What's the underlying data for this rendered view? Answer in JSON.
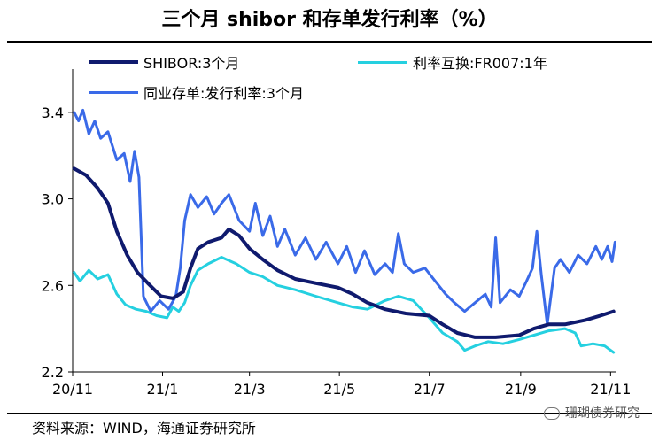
{
  "title": "三个月 shibor 和存单发行利率（%）",
  "source": "资料来源：WIND，海通证券研究所",
  "watermark": "珊瑚债券研究",
  "colors": {
    "shibor": "#0f1a6e",
    "irs": "#25d0e0",
    "ncd": "#3a6ae8",
    "axis": "#000000",
    "background": "#ffffff"
  },
  "chart_data": {
    "type": "line",
    "ylim": [
      2.2,
      3.6
    ],
    "y_ticks": [
      "2.2",
      "2.6",
      "3.0",
      "3.4"
    ],
    "x_tick_labels": [
      "20/11",
      "21/1",
      "21/3",
      "21/5",
      "21/7",
      "21/9",
      "21/11"
    ],
    "x_tick_dates": [
      "2020-11-01",
      "2021-01-01",
      "2021-03-01",
      "2021-05-01",
      "2021-07-01",
      "2021-09-01",
      "2021-11-01"
    ],
    "x_range": [
      "2020-11-01",
      "2021-11-05"
    ],
    "legend": "top",
    "series": [
      {
        "name": "SHIBOR:3个月",
        "key": "shibor",
        "points": [
          [
            "2020-11-02",
            3.14
          ],
          [
            "2020-11-10",
            3.11
          ],
          [
            "2020-11-18",
            3.05
          ],
          [
            "2020-11-25",
            2.98
          ],
          [
            "2020-12-01",
            2.85
          ],
          [
            "2020-12-08",
            2.74
          ],
          [
            "2020-12-15",
            2.66
          ],
          [
            "2020-12-22",
            2.61
          ],
          [
            "2020-12-31",
            2.55
          ],
          [
            "2021-01-08",
            2.54
          ],
          [
            "2021-01-15",
            2.57
          ],
          [
            "2021-01-20",
            2.68
          ],
          [
            "2021-01-25",
            2.77
          ],
          [
            "2021-02-01",
            2.8
          ],
          [
            "2021-02-10",
            2.82
          ],
          [
            "2021-02-15",
            2.86
          ],
          [
            "2021-02-22",
            2.83
          ],
          [
            "2021-03-01",
            2.77
          ],
          [
            "2021-03-10",
            2.72
          ],
          [
            "2021-03-20",
            2.67
          ],
          [
            "2021-04-01",
            2.63
          ],
          [
            "2021-04-15",
            2.61
          ],
          [
            "2021-04-30",
            2.59
          ],
          [
            "2021-05-10",
            2.56
          ],
          [
            "2021-05-20",
            2.52
          ],
          [
            "2021-06-01",
            2.49
          ],
          [
            "2021-06-15",
            2.47
          ],
          [
            "2021-07-01",
            2.46
          ],
          [
            "2021-07-10",
            2.42
          ],
          [
            "2021-07-20",
            2.38
          ],
          [
            "2021-08-01",
            2.36
          ],
          [
            "2021-08-15",
            2.36
          ],
          [
            "2021-08-31",
            2.37
          ],
          [
            "2021-09-10",
            2.4
          ],
          [
            "2021-09-20",
            2.42
          ],
          [
            "2021-10-01",
            2.42
          ],
          [
            "2021-10-15",
            2.44
          ],
          [
            "2021-10-25",
            2.46
          ],
          [
            "2021-11-03",
            2.48
          ]
        ]
      },
      {
        "name": "利率互换:FR007:1年",
        "key": "irs",
        "points": [
          [
            "2020-11-02",
            2.66
          ],
          [
            "2020-11-06",
            2.62
          ],
          [
            "2020-11-12",
            2.67
          ],
          [
            "2020-11-18",
            2.63
          ],
          [
            "2020-11-25",
            2.65
          ],
          [
            "2020-12-01",
            2.56
          ],
          [
            "2020-12-07",
            2.51
          ],
          [
            "2020-12-14",
            2.49
          ],
          [
            "2020-12-21",
            2.48
          ],
          [
            "2020-12-28",
            2.46
          ],
          [
            "2021-01-04",
            2.45
          ],
          [
            "2021-01-08",
            2.5
          ],
          [
            "2021-01-12",
            2.48
          ],
          [
            "2021-01-16",
            2.52
          ],
          [
            "2021-01-20",
            2.6
          ],
          [
            "2021-01-25",
            2.67
          ],
          [
            "2021-02-01",
            2.7
          ],
          [
            "2021-02-10",
            2.73
          ],
          [
            "2021-02-20",
            2.7
          ],
          [
            "2021-03-01",
            2.66
          ],
          [
            "2021-03-10",
            2.64
          ],
          [
            "2021-03-20",
            2.6
          ],
          [
            "2021-04-01",
            2.58
          ],
          [
            "2021-04-15",
            2.55
          ],
          [
            "2021-04-30",
            2.52
          ],
          [
            "2021-05-10",
            2.5
          ],
          [
            "2021-05-20",
            2.49
          ],
          [
            "2021-06-01",
            2.53
          ],
          [
            "2021-06-10",
            2.55
          ],
          [
            "2021-06-20",
            2.53
          ],
          [
            "2021-07-01",
            2.45
          ],
          [
            "2021-07-10",
            2.38
          ],
          [
            "2021-07-20",
            2.34
          ],
          [
            "2021-07-25",
            2.3
          ],
          [
            "2021-08-01",
            2.32
          ],
          [
            "2021-08-10",
            2.34
          ],
          [
            "2021-08-20",
            2.33
          ],
          [
            "2021-08-31",
            2.35
          ],
          [
            "2021-09-10",
            2.37
          ],
          [
            "2021-09-20",
            2.39
          ],
          [
            "2021-10-01",
            2.4
          ],
          [
            "2021-10-08",
            2.38
          ],
          [
            "2021-10-12",
            2.32
          ],
          [
            "2021-10-20",
            2.33
          ],
          [
            "2021-10-28",
            2.32
          ],
          [
            "2021-11-03",
            2.29
          ]
        ]
      },
      {
        "name": "同业存单:发行利率:3个月",
        "key": "ncd",
        "points": [
          [
            "2020-11-02",
            3.4
          ],
          [
            "2020-11-05",
            3.36
          ],
          [
            "2020-11-08",
            3.41
          ],
          [
            "2020-11-12",
            3.3
          ],
          [
            "2020-11-16",
            3.36
          ],
          [
            "2020-11-20",
            3.28
          ],
          [
            "2020-11-25",
            3.31
          ],
          [
            "2020-12-01",
            3.18
          ],
          [
            "2020-12-06",
            3.21
          ],
          [
            "2020-12-10",
            3.08
          ],
          [
            "2020-12-13",
            3.22
          ],
          [
            "2020-12-16",
            3.1
          ],
          [
            "2020-12-19",
            2.55
          ],
          [
            "2020-12-24",
            2.48
          ],
          [
            "2020-12-30",
            2.53
          ],
          [
            "2021-01-05",
            2.49
          ],
          [
            "2021-01-10",
            2.55
          ],
          [
            "2021-01-13",
            2.68
          ],
          [
            "2021-01-16",
            2.9
          ],
          [
            "2021-01-20",
            3.02
          ],
          [
            "2021-01-25",
            2.96
          ],
          [
            "2021-01-31",
            3.01
          ],
          [
            "2021-02-05",
            2.93
          ],
          [
            "2021-02-10",
            2.98
          ],
          [
            "2021-02-15",
            3.02
          ],
          [
            "2021-02-22",
            2.9
          ],
          [
            "2021-03-01",
            2.85
          ],
          [
            "2021-03-05",
            2.98
          ],
          [
            "2021-03-10",
            2.83
          ],
          [
            "2021-03-15",
            2.92
          ],
          [
            "2021-03-20",
            2.78
          ],
          [
            "2021-03-25",
            2.86
          ],
          [
            "2021-04-01",
            2.74
          ],
          [
            "2021-04-08",
            2.82
          ],
          [
            "2021-04-15",
            2.72
          ],
          [
            "2021-04-22",
            2.8
          ],
          [
            "2021-04-30",
            2.7
          ],
          [
            "2021-05-06",
            2.78
          ],
          [
            "2021-05-12",
            2.66
          ],
          [
            "2021-05-18",
            2.76
          ],
          [
            "2021-05-25",
            2.65
          ],
          [
            "2021-06-01",
            2.7
          ],
          [
            "2021-06-06",
            2.66
          ],
          [
            "2021-06-10",
            2.84
          ],
          [
            "2021-06-14",
            2.7
          ],
          [
            "2021-06-20",
            2.66
          ],
          [
            "2021-06-28",
            2.68
          ],
          [
            "2021-07-05",
            2.62
          ],
          [
            "2021-07-12",
            2.56
          ],
          [
            "2021-07-18",
            2.52
          ],
          [
            "2021-07-25",
            2.48
          ],
          [
            "2021-08-01",
            2.52
          ],
          [
            "2021-08-08",
            2.56
          ],
          [
            "2021-08-12",
            2.5
          ],
          [
            "2021-08-15",
            2.82
          ],
          [
            "2021-08-18",
            2.52
          ],
          [
            "2021-08-25",
            2.58
          ],
          [
            "2021-08-31",
            2.55
          ],
          [
            "2021-09-05",
            2.62
          ],
          [
            "2021-09-09",
            2.68
          ],
          [
            "2021-09-12",
            2.85
          ],
          [
            "2021-09-15",
            2.65
          ],
          [
            "2021-09-19",
            2.42
          ],
          [
            "2021-09-24",
            2.68
          ],
          [
            "2021-09-28",
            2.72
          ],
          [
            "2021-10-04",
            2.66
          ],
          [
            "2021-10-10",
            2.74
          ],
          [
            "2021-10-16",
            2.7
          ],
          [
            "2021-10-22",
            2.78
          ],
          [
            "2021-10-26",
            2.72
          ],
          [
            "2021-10-30",
            2.78
          ],
          [
            "2021-11-02",
            2.71
          ],
          [
            "2021-11-04",
            2.8
          ]
        ]
      }
    ]
  }
}
